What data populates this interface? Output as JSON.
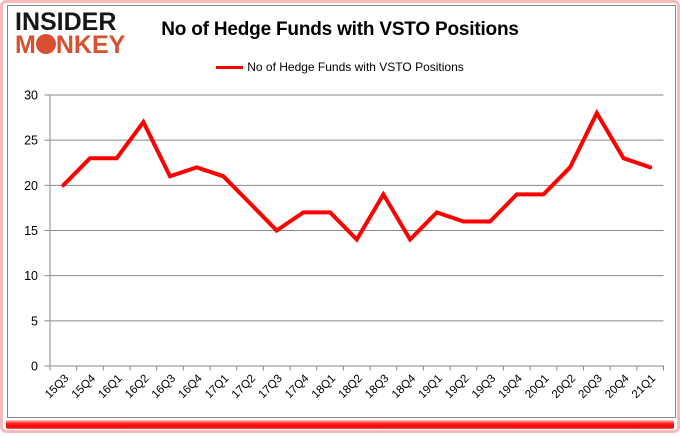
{
  "logo": {
    "line1": "INSIDER",
    "line2": "MONKEY"
  },
  "header": {
    "title": "No of Hedge Funds with VSTO Positions"
  },
  "legend": {
    "label": "No of Hedge Funds with VSTO Positions"
  },
  "chart_data": {
    "type": "line",
    "title": "No of Hedge Funds with VSTO Positions",
    "categories": [
      "15Q3",
      "15Q4",
      "16Q1",
      "16Q2",
      "16Q3",
      "16Q4",
      "17Q1",
      "17Q2",
      "17Q3",
      "17Q4",
      "18Q1",
      "18Q2",
      "18Q3",
      "18Q4",
      "19Q1",
      "19Q2",
      "19Q3",
      "19Q4",
      "20Q1",
      "20Q2",
      "20Q3",
      "20Q4",
      "21Q1"
    ],
    "series": [
      {
        "name": "No of Hedge Funds with VSTO Positions",
        "color": "#ff0000",
        "values": [
          20,
          23,
          23,
          27,
          21,
          22,
          21,
          18,
          15,
          17,
          17,
          14,
          19,
          14,
          17,
          16,
          16,
          19,
          19,
          22,
          28,
          23,
          22
        ]
      }
    ],
    "xlabel": "",
    "ylabel": "",
    "ylim": [
      0,
      30
    ],
    "y_ticks": [
      0,
      5,
      10,
      15,
      20,
      25,
      30
    ],
    "grid": true,
    "legend_position": "top-center"
  },
  "colors": {
    "line": "#ff0000",
    "grid": "#8a8a8a",
    "axis": "#8a8a8a",
    "tick_text": "#000000",
    "logo_black": "#171717",
    "logo_red": "#d8502f",
    "border_pink": "#f6bcbc",
    "border_red": "#f40000",
    "frame_gray": "#858585"
  }
}
